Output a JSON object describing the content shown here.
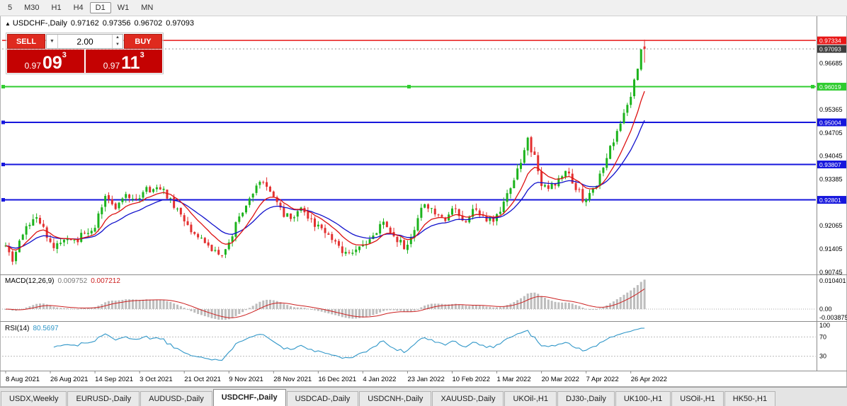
{
  "toolbar": {
    "timeframes": [
      "5",
      "M30",
      "H1",
      "H4",
      "D1",
      "W1",
      "MN"
    ],
    "active": "D1"
  },
  "title": {
    "collapse_icon": "▲",
    "symbol": "USDCHF-,Daily",
    "open": "0.97162",
    "high": "0.97356",
    "low": "0.96702",
    "close": "0.97093"
  },
  "trade_panel": {
    "sell_label": "SELL",
    "buy_label": "BUY",
    "volume": "2.00",
    "sell_price": {
      "prefix": "0.97",
      "big": "09",
      "sup": "3"
    },
    "buy_price": {
      "prefix": "0.97",
      "big": "11",
      "sup": "3"
    }
  },
  "price_axis": {
    "plain_labels": [
      "0.96685",
      "0.95365",
      "0.94705",
      "0.94045",
      "0.93385",
      "0.92065",
      "0.91405",
      "0.90745"
    ],
    "current_tag": {
      "label": "0.97093",
      "price": 0.97093,
      "bg": "#3d3d3d"
    }
  },
  "hlines": [
    {
      "price": 0.97334,
      "label": "0.97334",
      "color": "#e81717",
      "width": 1.5,
      "handles": "none"
    },
    {
      "price": 0.96019,
      "label": "0.96019",
      "color": "#2fcc2f",
      "width": 2,
      "handles": "both"
    },
    {
      "price": 0.95004,
      "label": "0.95004",
      "color": "#1616dd",
      "width": 2,
      "handles": "left"
    },
    {
      "price": 0.93807,
      "label": "0.93807",
      "color": "#1616dd",
      "width": 2,
      "handles": "left"
    },
    {
      "price": 0.92801,
      "label": "0.92801",
      "color": "#1616dd",
      "width": 2,
      "handles": "left"
    }
  ],
  "indicators": {
    "macd": {
      "name": "MACD(12,26,9)",
      "value_main": "0.009752",
      "value_signal": "0.007212",
      "fast": 12,
      "slow": 26,
      "signal": 9,
      "axis_labels": [
        "0.010401",
        "0.00",
        "-0.003875"
      ],
      "hist_color": "#bdbdbd",
      "signal_color": "#cc2020"
    },
    "rsi": {
      "name": "RSI(14)",
      "value": "80.5697",
      "period": 14,
      "axis_labels": [
        "100",
        "70",
        "30"
      ],
      "levels": [
        70,
        30
      ],
      "color": "#2f96c8"
    }
  },
  "dates": [
    "8 Aug 2021",
    "26 Aug 2021",
    "14 Sep 2021",
    "3 Oct 2021",
    "21 Oct 2021",
    "9 Nov 2021",
    "28 Nov 2021",
    "16 Dec 2021",
    "4 Jan 2022",
    "23 Jan 2022",
    "10 Feb 2022",
    "1 Mar 2022",
    "20 Mar 2022",
    "7 Apr 2022",
    "26 Apr 2022"
  ],
  "tabs": [
    "USDX,Weekly",
    "EURUSD-,Daily",
    "AUDUSD-,Daily",
    "USDCHF-,Daily",
    "USDCAD-,Daily",
    "USDCNH-,Daily",
    "XAUUSD-,Daily",
    "UKOil-,H1",
    "DJ30-,Daily",
    "UK100-,H1",
    "USOil-,H1",
    "HK50-,H1"
  ],
  "active_tab": "USDCHF-,Daily",
  "chart_data": {
    "type": "candlestick",
    "symbol": "USDCHF",
    "timeframe": "Daily",
    "bars": 187,
    "seed": 20220426,
    "up_color": "#1db31d",
    "down_color": "#e33030",
    "ma_fast": {
      "period": 10,
      "color": "#dd1111"
    },
    "ma_slow": {
      "period": 20,
      "color": "#1111cc"
    },
    "price_range": {
      "top": 0.9788,
      "bottom": 0.907
    },
    "current_bar": {
      "o": 0.97162,
      "h": 0.97356,
      "l": 0.96702,
      "c": 0.97093
    },
    "anchors": [
      [
        0,
        0.915
      ],
      [
        2,
        0.9108
      ],
      [
        5,
        0.9175
      ],
      [
        8,
        0.9232
      ],
      [
        11,
        0.9205
      ],
      [
        14,
        0.9141
      ],
      [
        17,
        0.9178
      ],
      [
        20,
        0.9155
      ],
      [
        23,
        0.9186
      ],
      [
        26,
        0.921
      ],
      [
        29,
        0.9285
      ],
      [
        32,
        0.9258
      ],
      [
        35,
        0.9296
      ],
      [
        38,
        0.9283
      ],
      [
        41,
        0.9306
      ],
      [
        44,
        0.9325
      ],
      [
        47,
        0.9288
      ],
      [
        50,
        0.9248
      ],
      [
        53,
        0.9208
      ],
      [
        56,
        0.9168
      ],
      [
        59,
        0.9145
      ],
      [
        62,
        0.9118
      ],
      [
        65,
        0.9152
      ],
      [
        68,
        0.9231
      ],
      [
        71,
        0.9282
      ],
      [
        74,
        0.9338
      ],
      [
        77,
        0.93
      ],
      [
        80,
        0.9248
      ],
      [
        83,
        0.9224
      ],
      [
        86,
        0.9253
      ],
      [
        89,
        0.9221
      ],
      [
        92,
        0.9198
      ],
      [
        95,
        0.9162
      ],
      [
        98,
        0.9139
      ],
      [
        101,
        0.9118
      ],
      [
        104,
        0.9146
      ],
      [
        107,
        0.9183
      ],
      [
        110,
        0.9213
      ],
      [
        113,
        0.9178
      ],
      [
        116,
        0.9146
      ],
      [
        119,
        0.9196
      ],
      [
        122,
        0.9278
      ],
      [
        125,
        0.9245
      ],
      [
        128,
        0.9228
      ],
      [
        131,
        0.9256
      ],
      [
        134,
        0.9222
      ],
      [
        137,
        0.9262
      ],
      [
        140,
        0.9215
      ],
      [
        143,
        0.9228
      ],
      [
        146,
        0.9298
      ],
      [
        149,
        0.936
      ],
      [
        152,
        0.9448
      ],
      [
        154,
        0.94
      ],
      [
        156,
        0.933
      ],
      [
        158,
        0.9305
      ],
      [
        160,
        0.9331
      ],
      [
        163,
        0.936
      ],
      [
        166,
        0.9312
      ],
      [
        169,
        0.9272
      ],
      [
        172,
        0.933
      ],
      [
        174,
        0.9378
      ],
      [
        176,
        0.9428
      ],
      [
        178,
        0.9478
      ],
      [
        180,
        0.9528
      ],
      [
        182,
        0.9585
      ],
      [
        184,
        0.965
      ],
      [
        185,
        0.9695
      ],
      [
        186,
        0.9709
      ]
    ]
  }
}
